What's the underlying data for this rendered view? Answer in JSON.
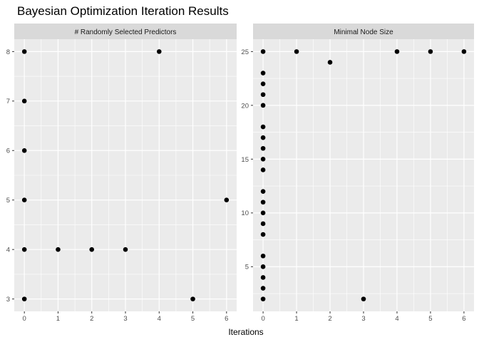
{
  "chart_data": {
    "type": "scatter",
    "title": "Bayesian Optimization Iteration Results",
    "xlabel": "Iterations",
    "legend": "none",
    "grid": "on",
    "facets": [
      {
        "title": "# Randomly Selected Predictors",
        "x_ticks": [
          0,
          1,
          2,
          3,
          4,
          5,
          6
        ],
        "y_ticks": [
          3,
          4,
          5,
          6,
          7,
          8
        ],
        "x_minor": [
          0.5,
          1.5,
          2.5,
          3.5,
          4.5,
          5.5
        ],
        "y_minor": [
          3.5,
          4.5,
          5.5,
          6.5,
          7.5
        ],
        "x_range": [
          -0.3,
          6.3
        ],
        "y_range": [
          2.75,
          8.25
        ],
        "points": [
          [
            0,
            8
          ],
          [
            0,
            7
          ],
          [
            0,
            6
          ],
          [
            0,
            5
          ],
          [
            0,
            4
          ],
          [
            0,
            3
          ],
          [
            1,
            4
          ],
          [
            2,
            4
          ],
          [
            3,
            4
          ],
          [
            4,
            8
          ],
          [
            5,
            3
          ],
          [
            6,
            5
          ]
        ]
      },
      {
        "title": "Minimal Node Size",
        "x_ticks": [
          0,
          1,
          2,
          3,
          4,
          5,
          6
        ],
        "y_ticks": [
          5,
          10,
          15,
          20,
          25
        ],
        "x_minor": [
          0.5,
          1.5,
          2.5,
          3.5,
          4.5,
          5.5
        ],
        "y_minor": [
          2.5,
          7.5,
          12.5,
          17.5,
          22.5
        ],
        "x_range": [
          -0.3,
          6.3
        ],
        "y_range": [
          0.85,
          26.15
        ],
        "points": [
          [
            0,
            25
          ],
          [
            0,
            23
          ],
          [
            0,
            22
          ],
          [
            0,
            21
          ],
          [
            0,
            20
          ],
          [
            0,
            18
          ],
          [
            0,
            17
          ],
          [
            0,
            16
          ],
          [
            0,
            15
          ],
          [
            0,
            14
          ],
          [
            0,
            12
          ],
          [
            0,
            11
          ],
          [
            0,
            10
          ],
          [
            0,
            9
          ],
          [
            0,
            8
          ],
          [
            0,
            6
          ],
          [
            0,
            5
          ],
          [
            0,
            4
          ],
          [
            0,
            3
          ],
          [
            0,
            2
          ],
          [
            1,
            25
          ],
          [
            2,
            24
          ],
          [
            3,
            2
          ],
          [
            4,
            25
          ],
          [
            5,
            25
          ],
          [
            6,
            25
          ]
        ]
      }
    ],
    "colors": {
      "background": "#FFFFFF",
      "panel_bg": "#EBEBEB",
      "strip_bg": "#D9D9D9",
      "grid": "#FFFFFF",
      "point": "#000000",
      "axis_text": "#4D4D4D",
      "tick_mark": "#333333",
      "title_text": "#000000"
    }
  }
}
